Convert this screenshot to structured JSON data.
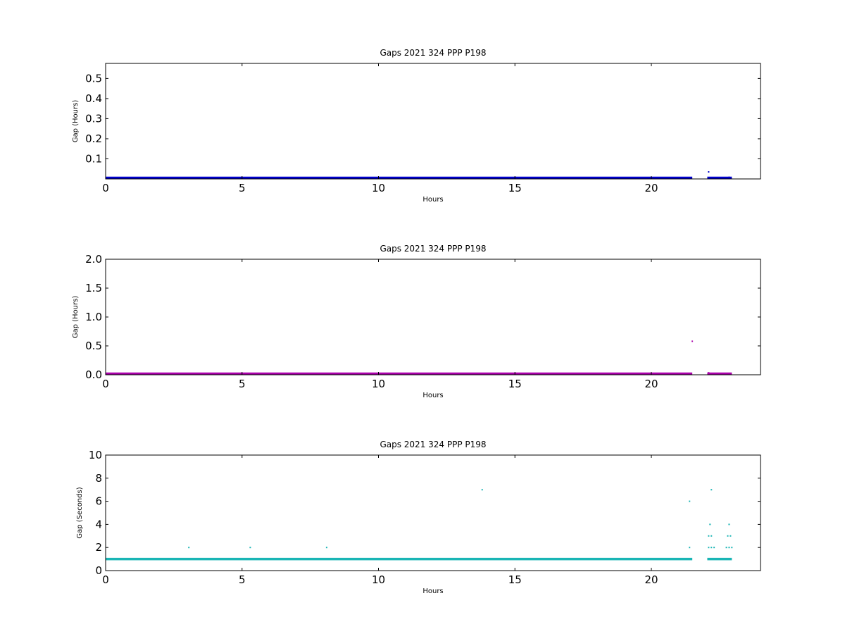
{
  "chart_data": [
    {
      "type": "scatter",
      "title": "Gaps 2021 324 PPP  P198",
      "xlabel": "Hours",
      "ylabel": "Gap (Hours)",
      "xlim": [
        0,
        24
      ],
      "ylim": [
        0,
        0.575
      ],
      "xticks": [
        0,
        5,
        10,
        15,
        20
      ],
      "yticks": [
        0.1,
        0.2,
        0.3,
        0.4,
        0.5
      ],
      "ytick_labels": [
        "0.1",
        "0.2",
        "0.3",
        "0.4",
        "0.5"
      ],
      "grid": false,
      "color": "#0000cc",
      "series": [
        {
          "baseline": [
            {
              "x_start": 0,
              "x_end": 21.5,
              "y": 0.0003
            },
            {
              "x_start": 22.05,
              "x_end": 22.95,
              "y": 0.0003
            }
          ],
          "points": [
            {
              "x": 22.1,
              "y": 0.035
            },
            {
              "x": 22.85,
              "y": 0.008
            },
            {
              "x": 22.9,
              "y": 0.005
            }
          ]
        }
      ]
    },
    {
      "type": "scatter",
      "title": "Gaps 2021 324 PPP  P198",
      "xlabel": "Hours",
      "ylabel": "Gap (Hours)",
      "xlim": [
        0,
        24
      ],
      "ylim": [
        0,
        2.0
      ],
      "xticks": [
        0,
        5,
        10,
        15,
        20
      ],
      "yticks": [
        0.0,
        0.5,
        1.0,
        1.5,
        2.0
      ],
      "ytick_labels": [
        "0.0",
        "0.5",
        "1.0",
        "1.5",
        "2.0"
      ],
      "grid": false,
      "color": "#aa00aa",
      "series": [
        {
          "baseline": [
            {
              "x_start": 0,
              "x_end": 21.5,
              "y": 0.0003
            },
            {
              "x_start": 22.05,
              "x_end": 22.95,
              "y": 0.0003
            }
          ],
          "points": [
            {
              "x": 21.5,
              "y": 0.58
            },
            {
              "x": 22.1,
              "y": 0.035
            }
          ]
        }
      ]
    },
    {
      "type": "scatter",
      "title": "Gaps 2021 324 PPP  P198",
      "xlabel": "Hours",
      "ylabel": "Gap (Seconds)",
      "xlim": [
        0,
        24
      ],
      "ylim": [
        0,
        10
      ],
      "xticks": [
        0,
        5,
        10,
        15,
        20
      ],
      "yticks": [
        0,
        2,
        4,
        6,
        8,
        10
      ],
      "ytick_labels": [
        "0",
        "2",
        "4",
        "6",
        "8",
        "10"
      ],
      "grid": false,
      "color": "#1ab5b5",
      "series": [
        {
          "baseline": [
            {
              "x_start": 0,
              "x_end": 21.5,
              "y": 1
            },
            {
              "x_start": 22.05,
              "x_end": 22.95,
              "y": 1
            }
          ],
          "points": [
            {
              "x": 3.05,
              "y": 2
            },
            {
              "x": 5.3,
              "y": 2
            },
            {
              "x": 8.1,
              "y": 2
            },
            {
              "x": 13.8,
              "y": 7
            },
            {
              "x": 21.4,
              "y": 6
            },
            {
              "x": 21.4,
              "y": 2
            },
            {
              "x": 22.15,
              "y": 4
            },
            {
              "x": 22.1,
              "y": 3
            },
            {
              "x": 22.2,
              "y": 3
            },
            {
              "x": 22.2,
              "y": 7
            },
            {
              "x": 22.1,
              "y": 2
            },
            {
              "x": 22.2,
              "y": 2
            },
            {
              "x": 22.3,
              "y": 2
            },
            {
              "x": 22.85,
              "y": 4
            },
            {
              "x": 22.8,
              "y": 3
            },
            {
              "x": 22.9,
              "y": 3
            },
            {
              "x": 22.75,
              "y": 2
            },
            {
              "x": 22.85,
              "y": 2
            },
            {
              "x": 22.95,
              "y": 2
            }
          ]
        }
      ]
    }
  ]
}
